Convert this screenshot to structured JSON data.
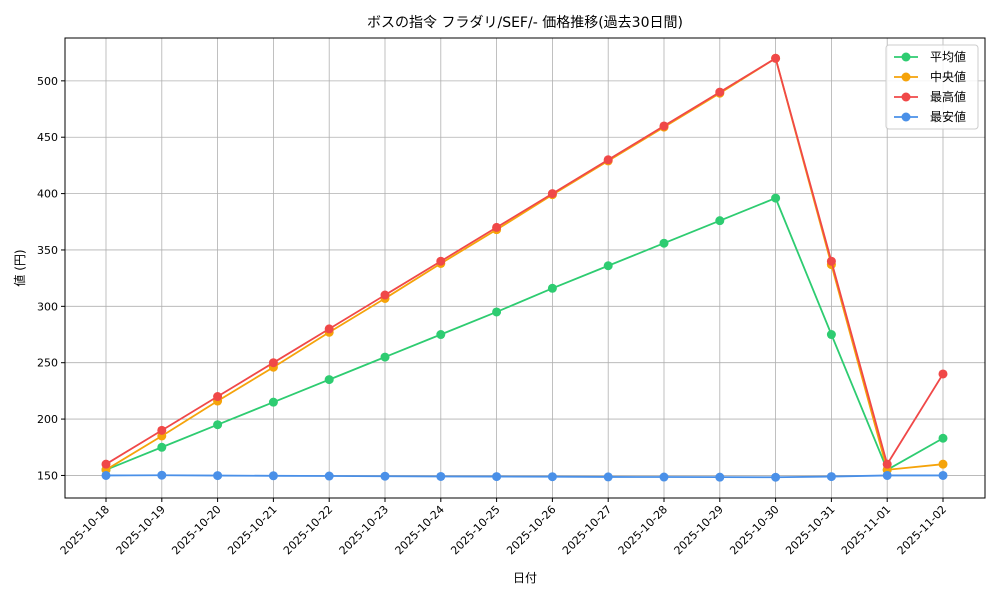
{
  "chart_data": {
    "type": "line",
    "title": "ボスの指令 フラダリ/SEF/- 価格推移(過去30日間)",
    "xlabel": "日付",
    "ylabel": "値 (円)",
    "x": [
      "2025-10-18",
      "2025-10-19",
      "2025-10-20",
      "2025-10-21",
      "2025-10-22",
      "2025-10-23",
      "2025-10-24",
      "2025-10-25",
      "2025-10-26",
      "2025-10-27",
      "2025-10-28",
      "2025-10-29",
      "2025-10-30",
      "2025-10-31",
      "2025-11-01",
      "2025-11-02"
    ],
    "ylim": [
      130,
      538
    ],
    "yticks": [
      150,
      200,
      250,
      300,
      350,
      400,
      450,
      500
    ],
    "grid": true,
    "legend_position": "top-right",
    "series": [
      {
        "name": "平均値",
        "color": "#2ecc71",
        "values": [
          155,
          175,
          195,
          215,
          235,
          255,
          275,
          295,
          316,
          336,
          356,
          376,
          396,
          275,
          155,
          183
        ]
      },
      {
        "name": "中央値",
        "color": "#f5a30a",
        "values": [
          155,
          185,
          216,
          246,
          277,
          307,
          338,
          368,
          399,
          429,
          459,
          489,
          520,
          337,
          155,
          160
        ]
      },
      {
        "name": "最高値",
        "color": "#f04848",
        "values": [
          160,
          190,
          220,
          250,
          280,
          310,
          340,
          370,
          400,
          430,
          460,
          490,
          520,
          340,
          160,
          240
        ]
      },
      {
        "name": "最安値",
        "color": "#4a90e8",
        "values": [
          150,
          150.2,
          149.9,
          149.7,
          149.5,
          149.3,
          149.1,
          149,
          148.9,
          148.7,
          148.6,
          148.5,
          148.4,
          149,
          150,
          150
        ]
      }
    ]
  }
}
